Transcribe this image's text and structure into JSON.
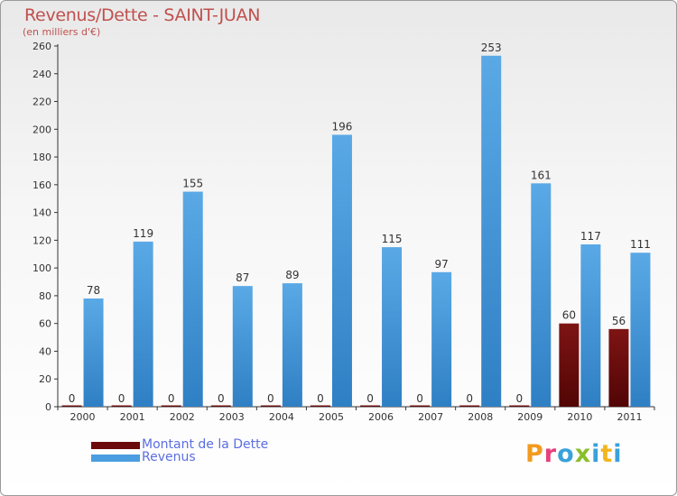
{
  "header": {
    "title": "Revenus/Dette - SAINT-JUAN",
    "subtitle": "(en milliers d'€)"
  },
  "chart_data": {
    "type": "bar",
    "title": "Revenus/Dette - SAINT-JUAN",
    "subtitle": "(en milliers d'€)",
    "xlabel": "",
    "ylabel": "",
    "categories": [
      "2000",
      "2001",
      "2002",
      "2003",
      "2004",
      "2005",
      "2006",
      "2007",
      "2008",
      "2009",
      "2010",
      "2011"
    ],
    "series": [
      {
        "name": "Montant de la Dette",
        "color": "#6b0a0a",
        "values": [
          0,
          0,
          0,
          0,
          0,
          0,
          0,
          0,
          0,
          0,
          60,
          56
        ]
      },
      {
        "name": "Revenus",
        "color": "#4a9de0",
        "values": [
          78,
          119,
          155,
          87,
          89,
          196,
          115,
          97,
          253,
          161,
          117,
          111
        ]
      }
    ],
    "ylim": [
      0,
      260
    ],
    "yticks": [
      0,
      20,
      40,
      60,
      80,
      100,
      120,
      140,
      160,
      180,
      200,
      220,
      240,
      260
    ],
    "grid": false,
    "legend": "bottom-left"
  },
  "legend": {
    "items": [
      {
        "label": "Montant de la Dette",
        "color": "#6b0a0a"
      },
      {
        "label": "Revenus",
        "color": "#4a9de0"
      }
    ]
  },
  "logo": {
    "text": "Proxiti",
    "letters": [
      "P",
      "r",
      "o",
      "x",
      "i",
      "t",
      "i"
    ]
  }
}
